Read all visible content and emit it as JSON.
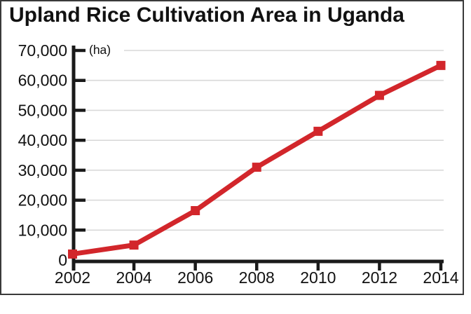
{
  "title": "Upland Rice Cultivation Area in Uganda",
  "chart_data": {
    "type": "line",
    "title": "Upland Rice Cultivation Area in Uganda",
    "unit_label": "(ha)",
    "xlabel": "",
    "ylabel": "(ha)",
    "x": [
      2002,
      2004,
      2006,
      2008,
      2010,
      2012,
      2014
    ],
    "x_tick_labels": [
      "2002",
      "2004",
      "2006",
      "2008",
      "2010",
      "2012",
      "2014"
    ],
    "series": [
      {
        "name": "Upland rice cultivation area (ha)",
        "values": [
          2000,
          5000,
          16500,
          31000,
          43000,
          55000,
          65000
        ]
      }
    ],
    "ylim": [
      0,
      70000
    ],
    "ytick_step": 10000,
    "y_tick_labels": [
      "0",
      "10,000",
      "20,000",
      "30,000",
      "40,000",
      "50,000",
      "60,000",
      "70,000"
    ],
    "grid": "horizontal-only",
    "legend": "none",
    "line_color": "#d2262b",
    "marker": "filled-square",
    "axis_color": "#1a1a1a",
    "gridline_color": "#d9d9d9",
    "text_color": "#111111"
  }
}
